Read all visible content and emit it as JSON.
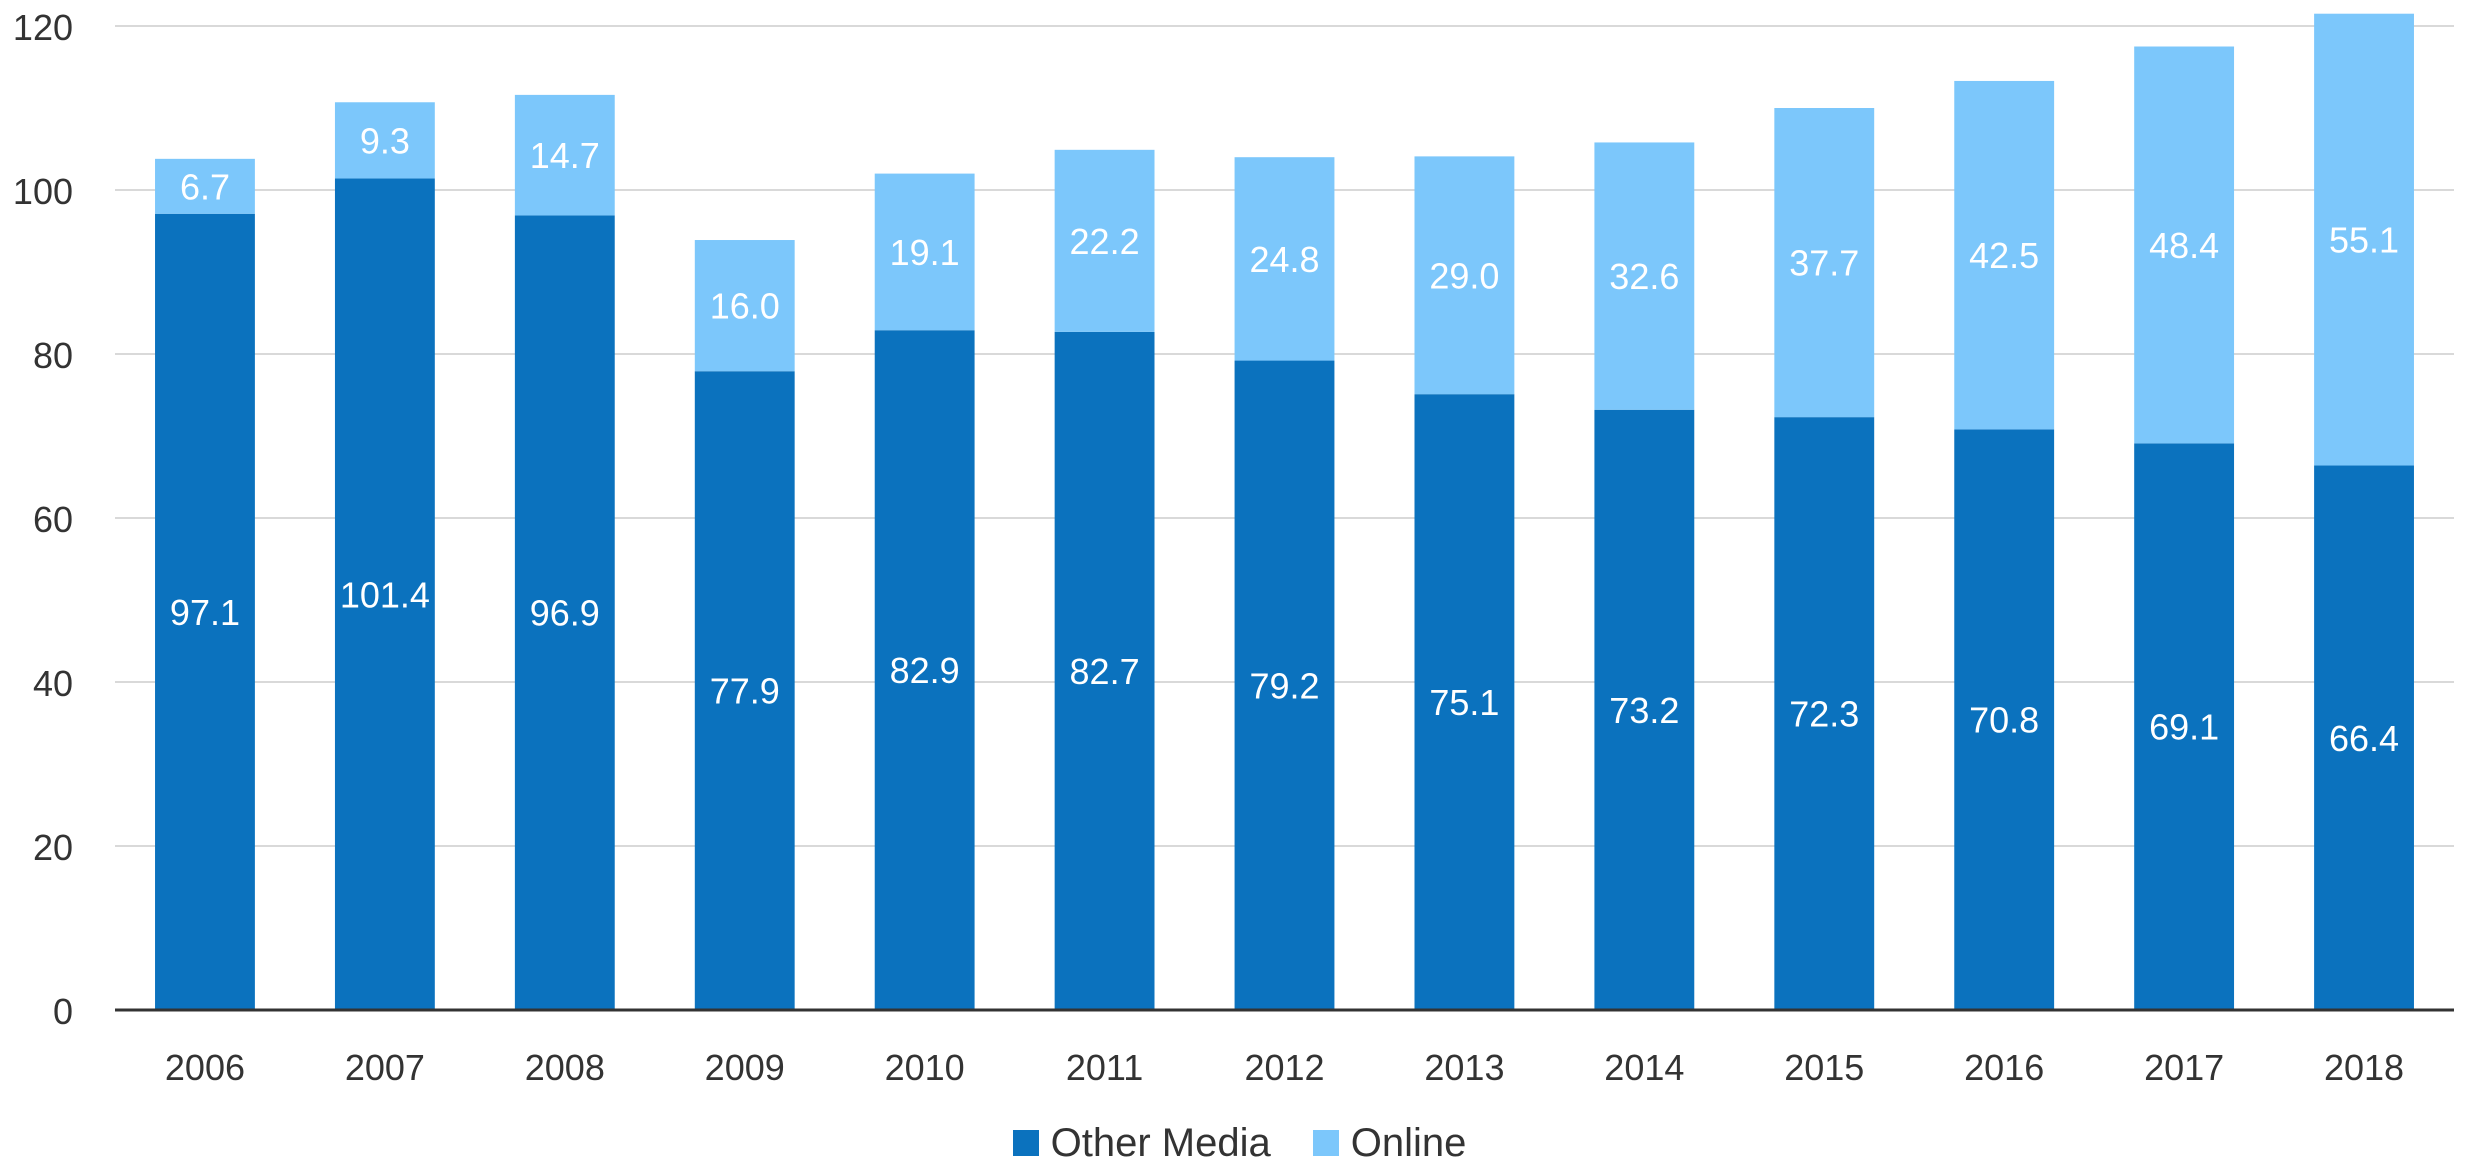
{
  "chart_data": {
    "type": "bar",
    "stacked": true,
    "categories": [
      "2006",
      "2007",
      "2008",
      "2009",
      "2010",
      "2011",
      "2012",
      "2013",
      "2014",
      "2015",
      "2016",
      "2017",
      "2018"
    ],
    "series": [
      {
        "name": "Other Media",
        "color": "#0b72be",
        "values": [
          97.1,
          101.4,
          96.9,
          77.9,
          82.9,
          82.7,
          79.2,
          75.1,
          73.2,
          72.3,
          70.8,
          69.1,
          66.4
        ],
        "labels": [
          "97.1",
          "101.4",
          "96.9",
          "77.9",
          "82.9",
          "82.7",
          "79.2",
          "75.1",
          "73.2",
          "72.3",
          "70.8",
          "69.1",
          "66.4"
        ]
      },
      {
        "name": "Online",
        "color": "#7cc7fb",
        "values": [
          6.7,
          9.3,
          14.7,
          16.0,
          19.1,
          22.2,
          24.8,
          29.0,
          32.6,
          37.7,
          42.5,
          48.4,
          55.1
        ],
        "labels": [
          "6.7",
          "9.3",
          "14.7",
          "16.0",
          "19.1",
          "22.2",
          "24.8",
          "29.0",
          "32.6",
          "37.7",
          "42.5",
          "48.4",
          "55.1"
        ]
      }
    ],
    "title": "",
    "xlabel": "",
    "ylabel": "",
    "ylim": [
      0,
      120
    ],
    "yticks": [
      0,
      20,
      40,
      60,
      80,
      100,
      120
    ],
    "ytick_labels": [
      "0",
      "20",
      "40",
      "60",
      "80",
      "100",
      "120"
    ],
    "grid": true,
    "legend": "bottom-center"
  }
}
